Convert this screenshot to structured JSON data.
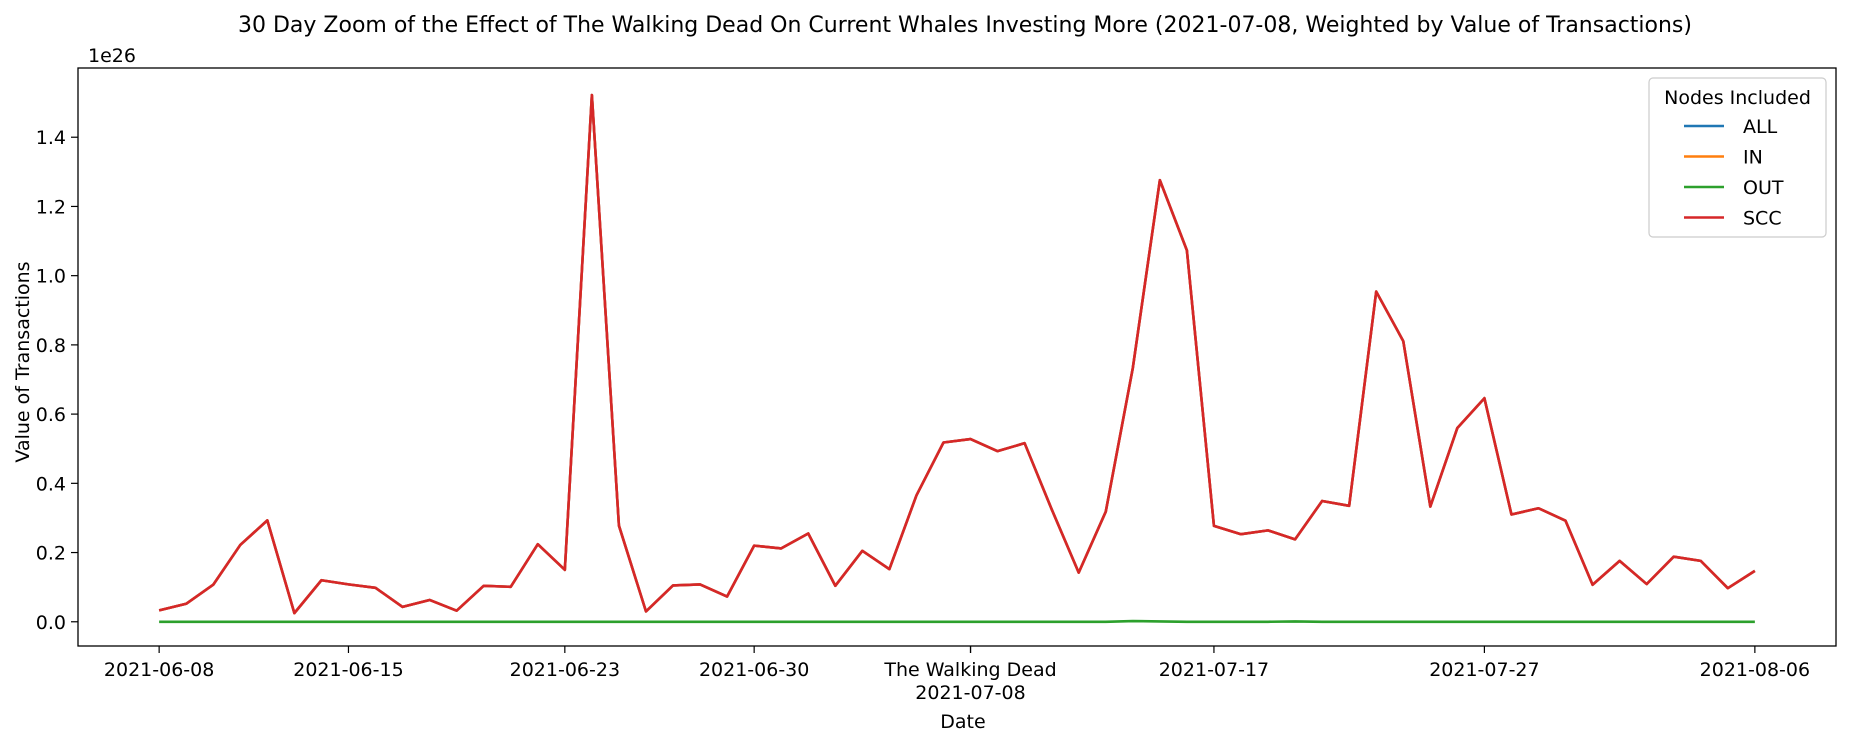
{
  "chart_data": {
    "type": "line",
    "title": "30 Day Zoom of the Effect of The Walking Dead On Current Whales Investing More (2021-07-08, Weighted by Value of Transactions)",
    "xlabel": "Date",
    "ylabel": "Value of Transactions",
    "y_offset_label": "1e26",
    "y_scale": "1e26",
    "ylim": [
      -0.07,
      1.6
    ],
    "xlim": [
      "2021-06-05",
      "2021-08-09"
    ],
    "y_ticks": [
      0.0,
      0.2,
      0.4,
      0.6,
      0.8,
      1.0,
      1.2,
      1.4
    ],
    "y_tick_labels": [
      "0.0",
      "0.2",
      "0.4",
      "0.6",
      "0.8",
      "1.0",
      "1.2",
      "1.4"
    ],
    "x_ticks": [
      {
        "date": "2021-06-08",
        "label": "2021-06-08"
      },
      {
        "date": "2021-06-15",
        "label": "2021-06-15"
      },
      {
        "date": "2021-06-23",
        "label": "2021-06-23"
      },
      {
        "date": "2021-06-30",
        "label": "2021-06-30"
      },
      {
        "date": "2021-07-08",
        "label": "2021-07-08"
      },
      {
        "date": "2021-07-17",
        "label": "2021-07-17"
      },
      {
        "date": "2021-07-27",
        "label": "2021-07-27"
      },
      {
        "date": "2021-08-06",
        "label": "2021-08-06"
      }
    ],
    "event_marker": {
      "date": "2021-07-08",
      "label": "The Walking Dead"
    },
    "legend": {
      "title": "Nodes Included",
      "position": "top-right"
    },
    "grid": false,
    "dates": [
      "2021-06-08",
      "2021-06-09",
      "2021-06-10",
      "2021-06-11",
      "2021-06-12",
      "2021-06-13",
      "2021-06-14",
      "2021-06-15",
      "2021-06-16",
      "2021-06-17",
      "2021-06-18",
      "2021-06-19",
      "2021-06-20",
      "2021-06-21",
      "2021-06-22",
      "2021-06-23",
      "2021-06-24",
      "2021-06-25",
      "2021-06-26",
      "2021-06-27",
      "2021-06-28",
      "2021-06-29",
      "2021-06-30",
      "2021-07-01",
      "2021-07-02",
      "2021-07-03",
      "2021-07-04",
      "2021-07-05",
      "2021-07-06",
      "2021-07-07",
      "2021-07-08",
      "2021-07-09",
      "2021-07-10",
      "2021-07-11",
      "2021-07-12",
      "2021-07-13",
      "2021-07-14",
      "2021-07-15",
      "2021-07-16",
      "2021-07-17",
      "2021-07-18",
      "2021-07-19",
      "2021-07-20",
      "2021-07-21",
      "2021-07-22",
      "2021-07-23",
      "2021-07-24",
      "2021-07-25",
      "2021-07-26",
      "2021-07-27",
      "2021-07-28",
      "2021-07-29",
      "2021-07-30",
      "2021-07-31",
      "2021-08-01",
      "2021-08-02",
      "2021-08-03",
      "2021-08-04",
      "2021-08-05",
      "2021-08-06"
    ],
    "series": [
      {
        "name": "ALL",
        "color": "#1f77b4",
        "values": [
          0.033,
          0.052,
          0.107,
          0.222,
          0.293,
          0.025,
          0.12,
          0.108,
          0.098,
          0.043,
          0.063,
          0.032,
          0.104,
          0.101,
          0.224,
          0.15,
          1.522,
          0.278,
          0.03,
          0.105,
          0.108,
          0.073,
          0.22,
          0.212,
          0.255,
          0.104,
          0.205,
          0.152,
          0.365,
          0.518,
          0.528,
          0.493,
          0.516,
          0.325,
          0.142,
          0.318,
          0.733,
          1.276,
          1.073,
          0.277,
          0.253,
          0.264,
          0.238,
          0.349,
          0.335,
          0.954,
          0.811,
          0.333,
          0.56,
          0.646,
          0.31,
          0.328,
          0.292,
          0.107,
          0.176,
          0.109,
          0.188,
          0.176,
          0.097,
          0.147
        ]
      },
      {
        "name": "IN",
        "color": "#ff7f0e",
        "values": [
          0.033,
          0.052,
          0.107,
          0.222,
          0.293,
          0.025,
          0.12,
          0.108,
          0.098,
          0.043,
          0.063,
          0.032,
          0.104,
          0.101,
          0.224,
          0.15,
          1.522,
          0.278,
          0.03,
          0.105,
          0.108,
          0.073,
          0.22,
          0.212,
          0.255,
          0.104,
          0.205,
          0.152,
          0.365,
          0.518,
          0.528,
          0.493,
          0.516,
          0.325,
          0.142,
          0.318,
          0.733,
          1.276,
          1.073,
          0.277,
          0.253,
          0.264,
          0.238,
          0.349,
          0.335,
          0.954,
          0.811,
          0.333,
          0.56,
          0.646,
          0.31,
          0.328,
          0.292,
          0.107,
          0.176,
          0.109,
          0.188,
          0.176,
          0.097,
          0.147
        ]
      },
      {
        "name": "OUT",
        "color": "#2ca02c",
        "values": [
          0.0,
          0.0,
          0.0,
          0.0,
          0.0,
          0.0,
          0.0,
          0.0,
          0.0,
          0.0,
          0.0,
          0.0,
          0.0,
          0.0,
          0.0,
          0.0,
          0.0,
          0.0,
          0.0,
          0.0,
          0.0,
          0.0,
          0.0,
          0.0,
          0.0,
          0.0,
          0.0,
          0.0,
          0.0,
          0.0,
          0.0,
          0.0,
          0.0,
          0.0,
          0.0,
          0.0,
          0.002,
          0.001,
          0.0,
          0.0,
          0.0,
          0.0,
          0.001,
          0.0,
          0.0,
          0.0,
          0.0,
          0.0,
          0.0,
          0.0,
          0.0,
          0.0,
          0.0,
          0.0,
          0.0,
          0.0,
          0.0,
          0.0,
          0.0,
          0.0
        ]
      },
      {
        "name": "SCC",
        "color": "#d62728",
        "values": [
          0.033,
          0.052,
          0.107,
          0.222,
          0.293,
          0.025,
          0.12,
          0.108,
          0.098,
          0.043,
          0.063,
          0.032,
          0.104,
          0.101,
          0.224,
          0.15,
          1.522,
          0.278,
          0.03,
          0.105,
          0.108,
          0.073,
          0.22,
          0.212,
          0.255,
          0.104,
          0.205,
          0.152,
          0.365,
          0.518,
          0.528,
          0.493,
          0.516,
          0.325,
          0.142,
          0.318,
          0.733,
          1.276,
          1.073,
          0.277,
          0.253,
          0.264,
          0.238,
          0.349,
          0.335,
          0.954,
          0.811,
          0.333,
          0.56,
          0.646,
          0.31,
          0.328,
          0.292,
          0.107,
          0.176,
          0.109,
          0.188,
          0.176,
          0.097,
          0.147
        ]
      }
    ]
  }
}
